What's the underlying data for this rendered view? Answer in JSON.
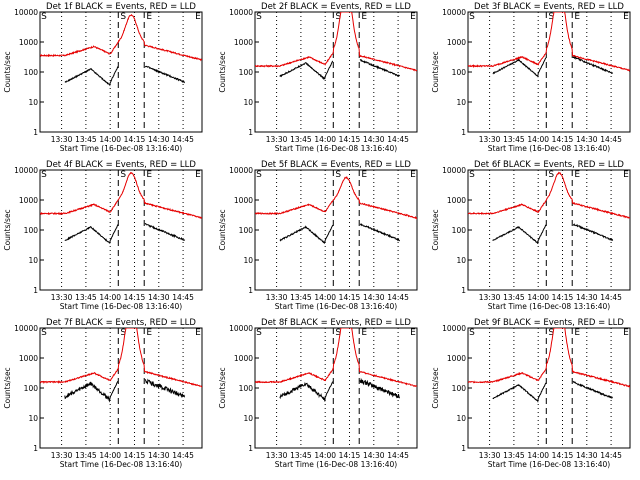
{
  "chart_data": [
    {
      "type": "line",
      "title": "Det 1f BLACK = Events, RED = LLD",
      "xlabel": "Start Time (16-Dec-08 13:16:40)",
      "ylabel": "Counts/sec",
      "yscale": "log",
      "ylim": [
        1,
        10000
      ],
      "y_ticks": [
        "1",
        "10",
        "100",
        "1000",
        "10000"
      ],
      "x_ticks": [
        "13:30",
        "13:45",
        "14:00",
        "14:15",
        "14:30",
        "14:45"
      ],
      "markers": [
        {
          "label": "S",
          "x": "14:05"
        },
        {
          "label": "E",
          "x": "14:21"
        }
      ],
      "events_profile": "lowA",
      "lld_profile": "peak",
      "colors": {
        "events": "#000000",
        "lld": "#e60000"
      }
    },
    {
      "type": "line",
      "title": "Det 2f BLACK = Events, RED = LLD",
      "xlabel": "Start Time (16-Dec-08 13:16:40)",
      "ylabel": "Counts/sec",
      "yscale": "log",
      "ylim": [
        1,
        10000
      ],
      "y_ticks": [
        "1",
        "10",
        "100",
        "1000",
        "10000"
      ],
      "x_ticks": [
        "13:30",
        "13:45",
        "14:00",
        "14:15",
        "14:30",
        "14:45"
      ],
      "markers": [
        {
          "label": "S",
          "x": "14:05"
        },
        {
          "label": "E",
          "x": "14:21"
        }
      ],
      "events_profile": "highA",
      "lld_profile": "clip",
      "colors": {
        "events": "#000000",
        "lld": "#e60000"
      }
    },
    {
      "type": "line",
      "title": "Det 3f BLACK = Events, RED = LLD",
      "xlabel": "Start Time (16-Dec-08 13:16:40)",
      "ylabel": "Counts/sec",
      "yscale": "log",
      "ylim": [
        1,
        10000
      ],
      "y_ticks": [
        "1",
        "10",
        "100",
        "1000",
        "10000"
      ],
      "x_ticks": [
        "13:30",
        "13:45",
        "14:00",
        "14:15",
        "14:30",
        "14:45"
      ],
      "markers": [
        {
          "label": "S",
          "x": "14:05"
        },
        {
          "label": "E",
          "x": "14:21"
        }
      ],
      "events_profile": "midA",
      "lld_profile": "clip",
      "colors": {
        "events": "#000000",
        "lld": "#e60000"
      }
    },
    {
      "type": "line",
      "title": "Det 4f BLACK = Events, RED = LLD",
      "xlabel": "Start Time (16-Dec-08 13:16:40)",
      "ylabel": "Counts/sec",
      "yscale": "log",
      "ylim": [
        1,
        10000
      ],
      "y_ticks": [
        "1",
        "10",
        "100",
        "1000",
        "10000"
      ],
      "x_ticks": [
        "13:30",
        "13:45",
        "14:00",
        "14:15",
        "14:30",
        "14:45"
      ],
      "markers": [
        {
          "label": "S",
          "x": "14:05"
        },
        {
          "label": "E",
          "x": "14:21"
        }
      ],
      "events_profile": "lowA",
      "lld_profile": "peak",
      "colors": {
        "events": "#000000",
        "lld": "#e60000"
      }
    },
    {
      "type": "line",
      "title": "Det 5f BLACK = Events, RED = LLD",
      "xlabel": "Start Time (16-Dec-08 13:16:40)",
      "ylabel": "Counts/sec",
      "yscale": "log",
      "ylim": [
        1,
        10000
      ],
      "y_ticks": [
        "1",
        "10",
        "100",
        "1000",
        "10000"
      ],
      "x_ticks": [
        "13:30",
        "13:45",
        "14:00",
        "14:15",
        "14:30",
        "14:45"
      ],
      "markers": [
        {
          "label": "S",
          "x": "14:05"
        },
        {
          "label": "E",
          "x": "14:21"
        }
      ],
      "events_profile": "lowA",
      "lld_profile": "peakSmall",
      "colors": {
        "events": "#000000",
        "lld": "#e60000"
      }
    },
    {
      "type": "line",
      "title": "Det 6f BLACK = Events, RED = LLD",
      "xlabel": "Start Time (16-Dec-08 13:16:40)",
      "ylabel": "Counts/sec",
      "yscale": "log",
      "ylim": [
        1,
        10000
      ],
      "y_ticks": [
        "1",
        "10",
        "100",
        "1000",
        "10000"
      ],
      "x_ticks": [
        "13:30",
        "13:45",
        "14:00",
        "14:15",
        "14:30",
        "14:45"
      ],
      "markers": [
        {
          "label": "S",
          "x": "14:05"
        },
        {
          "label": "E",
          "x": "14:21"
        }
      ],
      "events_profile": "lowA",
      "lld_profile": "peak",
      "colors": {
        "events": "#000000",
        "lld": "#e60000"
      }
    },
    {
      "type": "line",
      "title": "Det 7f BLACK = Events, RED = LLD",
      "xlabel": "Start Time (16-Dec-08 13:16:40)",
      "ylabel": "Counts/sec",
      "yscale": "log",
      "ylim": [
        1,
        10000
      ],
      "y_ticks": [
        "1",
        "10",
        "100",
        "1000",
        "10000"
      ],
      "x_ticks": [
        "13:30",
        "13:45",
        "14:00",
        "14:15",
        "14:30",
        "14:45"
      ],
      "markers": [
        {
          "label": "S",
          "x": "14:05"
        },
        {
          "label": "E",
          "x": "14:21"
        }
      ],
      "events_profile": "noisyMid",
      "lld_profile": "clip",
      "colors": {
        "events": "#000000",
        "lld": "#e60000"
      }
    },
    {
      "type": "line",
      "title": "Det 8f BLACK = Events, RED = LLD",
      "xlabel": "Start Time (16-Dec-08 13:16:40)",
      "ylabel": "Counts/sec",
      "yscale": "log",
      "ylim": [
        1,
        10000
      ],
      "y_ticks": [
        "1",
        "10",
        "100",
        "1000",
        "10000"
      ],
      "x_ticks": [
        "13:30",
        "13:45",
        "14:00",
        "14:15",
        "14:30",
        "14:45"
      ],
      "markers": [
        {
          "label": "S",
          "x": "14:05"
        },
        {
          "label": "E",
          "x": "14:21"
        }
      ],
      "events_profile": "noisyMid",
      "lld_profile": "clip",
      "colors": {
        "events": "#000000",
        "lld": "#e60000"
      }
    },
    {
      "type": "line",
      "title": "Det 9f BLACK = Events, RED = LLD",
      "xlabel": "Start Time (16-Dec-08 13:16:40)",
      "ylabel": "Counts/sec",
      "yscale": "log",
      "ylim": [
        1,
        10000
      ],
      "y_ticks": [
        "1",
        "10",
        "100",
        "1000",
        "10000"
      ],
      "x_ticks": [
        "13:30",
        "13:45",
        "14:00",
        "14:15",
        "14:30",
        "14:45"
      ],
      "markers": [
        {
          "label": "S",
          "x": "14:05"
        },
        {
          "label": "E",
          "x": "14:21"
        }
      ],
      "events_profile": "lowA",
      "lld_profile": "clip",
      "colors": {
        "events": "#000000",
        "lld": "#e60000"
      }
    }
  ]
}
